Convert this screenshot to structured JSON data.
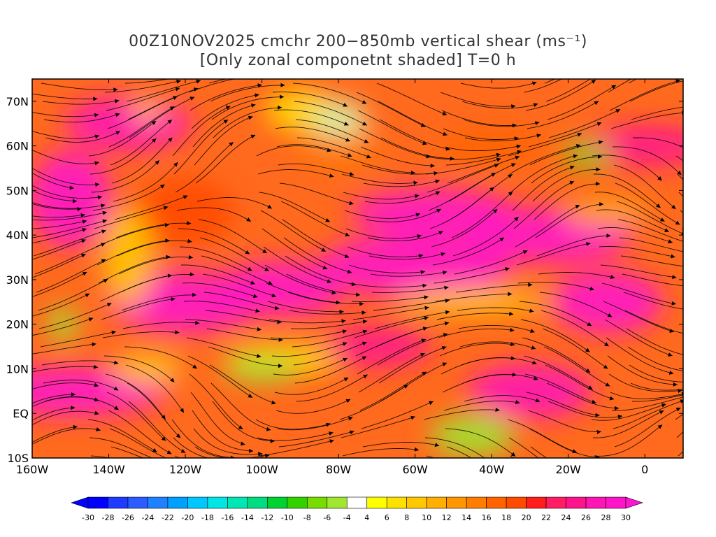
{
  "title": {
    "line1": "00Z10NOV2025 cmchr 200−850mb vertical shear (ms⁻¹)",
    "line2": "[Only zonal componetnt shaded] T=0 h"
  },
  "axes": {
    "lat_labels": [
      "70N",
      "60N",
      "50N",
      "40N",
      "30N",
      "20N",
      "10N",
      "EQ",
      "10S"
    ],
    "lon_labels": [
      "160W",
      "140W",
      "120W",
      "100W",
      "80W",
      "60W",
      "40W",
      "20W",
      "0"
    ]
  },
  "colorbar": {
    "labels": [
      "-30",
      "-28",
      "-26",
      "-24",
      "-22",
      "-20",
      "-18",
      "-16",
      "-14",
      "-12",
      "-10",
      "-8",
      "-6",
      "-4",
      "4",
      "6",
      "8",
      "10",
      "12",
      "14",
      "16",
      "18",
      "20",
      "22",
      "24",
      "26",
      "28",
      "30"
    ],
    "colors": [
      "#0000ff",
      "#1e3cff",
      "#2a5cff",
      "#1e82ff",
      "#00a0ff",
      "#00c8ff",
      "#00e6e6",
      "#00e6b4",
      "#00dc82",
      "#00d232",
      "#32d200",
      "#78dc00",
      "#a0e632",
      "#ffffff",
      "#ffff00",
      "#ffe100",
      "#ffc800",
      "#ffaf00",
      "#ff9600",
      "#ff7d00",
      "#ff6400",
      "#ff4b00",
      "#ff1e1e",
      "#ff1e64",
      "#ff148c",
      "#ff14b4",
      "#ff14c8"
    ],
    "underflow_color": "#0000ff",
    "overflow_color": "#ff14d2"
  },
  "map": {
    "region": "160W-10E, 10S-75N",
    "shading": "zonal component of 200-850mb vertical shear",
    "overlay": "shear streamlines"
  }
}
